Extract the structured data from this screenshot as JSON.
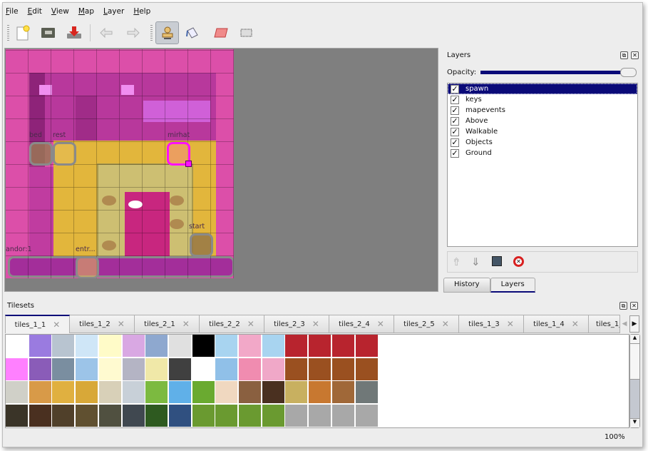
{
  "menu": [
    "File",
    "Edit",
    "View",
    "Map",
    "Layer",
    "Help"
  ],
  "toolbar": {
    "buttons": [
      {
        "name": "new-map",
        "icon": "new-document-icon"
      },
      {
        "name": "open",
        "icon": "folder-open-icon"
      },
      {
        "name": "save",
        "icon": "save-download-icon"
      },
      {
        "name": "undo",
        "icon": "undo-icon"
      },
      {
        "name": "redo",
        "icon": "redo-icon"
      },
      {
        "name": "stamp-brush",
        "icon": "stamp-icon",
        "active": true
      },
      {
        "name": "bucket-fill",
        "icon": "paint-bucket-icon"
      },
      {
        "name": "eraser",
        "icon": "eraser-icon"
      },
      {
        "name": "rect-select",
        "icon": "rectangle-select-icon"
      }
    ]
  },
  "map": {
    "objects": [
      {
        "label": "bed"
      },
      {
        "label": "rest"
      },
      {
        "label": "mirhat"
      },
      {
        "label": "start"
      },
      {
        "label": "andor:1"
      },
      {
        "label": "entr..."
      }
    ]
  },
  "layers_panel": {
    "title": "Layers",
    "opacity_label": "Opacity:",
    "opacity_percent": 100,
    "layers": [
      {
        "name": "spawn",
        "visible": true,
        "selected": true
      },
      {
        "name": "keys",
        "visible": true
      },
      {
        "name": "mapevents",
        "visible": true
      },
      {
        "name": "Above",
        "visible": true
      },
      {
        "name": "Walkable",
        "visible": true
      },
      {
        "name": "Objects",
        "visible": true
      },
      {
        "name": "Ground",
        "visible": true
      }
    ],
    "tabs": [
      "History",
      "Layers"
    ],
    "active_tab": "Layers"
  },
  "tilesets": {
    "title": "Tilesets",
    "tabs": [
      "tiles_1_1",
      "tiles_1_2",
      "tiles_2_1",
      "tiles_2_2",
      "tiles_2_3",
      "tiles_2_4",
      "tiles_2_5",
      "tiles_1_3",
      "tiles_1_4",
      "tiles_1_"
    ],
    "active_tab": "tiles_1_1",
    "tile_colors": [
      [
        "#ffffff",
        "#9a7be0",
        "#b8c4d0",
        "#cfe6f7",
        "#fffbc8",
        "#d9a8e3",
        "#8ea8cf",
        "#e0e0e0",
        "#000000",
        "#a8d4f0",
        "#f2a8c8",
        "#a8d4f0",
        "#b8242e",
        "#b8242e",
        "#b8242e",
        "#b8242e"
      ],
      [
        "#ff80ff",
        "#8a5cb8",
        "#7a8ea0",
        "#9cc4e8",
        "#fffad0",
        "#b4b4c4",
        "#f0e8a8",
        "#404040",
        "#ffffff",
        "#90c0e8",
        "#f08cb0",
        "#f0a8c8",
        "#9a5020",
        "#9a5020",
        "#9a5020",
        "#9a5020"
      ],
      [
        "#d0d0c8",
        "#d89a48",
        "#e0b040",
        "#d8a838",
        "#d8d0b8",
        "#c8d0d8",
        "#7cba40",
        "#60b0e8",
        "#6aaa30",
        "#f0d8c0",
        "#8a6040",
        "#4a3020",
        "#c8b060",
        "#c87830",
        "#a06838",
        "#707878"
      ],
      [
        "#3a3428",
        "#4a3020",
        "#50402a",
        "#605030",
        "#505040",
        "#404850",
        "#2e5a20",
        "#305080",
        "#6a9a30",
        "#6a9a30",
        "#6a9a30",
        "#6a9a30",
        "#a8a8a8",
        "#a8a8a8",
        "#a8a8a8",
        "#a8a8a8"
      ]
    ]
  },
  "status": {
    "zoom": "100%"
  }
}
